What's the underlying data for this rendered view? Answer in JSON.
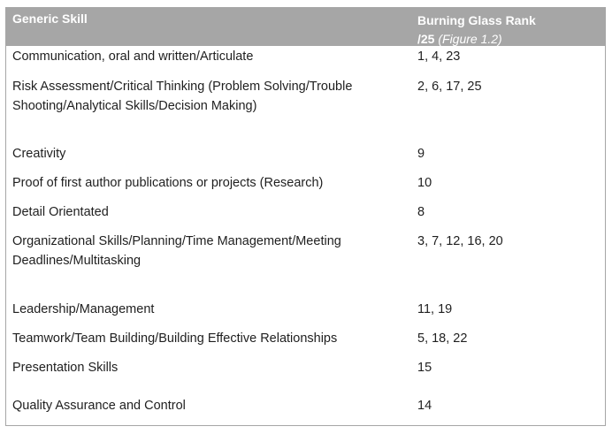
{
  "table": {
    "headers": {
      "col1": "Generic Skill",
      "col2_line1": "Burning Glass Rank",
      "col2_line2": "/25",
      "col2_figure": "(Figure 1.2)"
    },
    "rows": [
      {
        "skill": "Communication, oral and written/Articulate",
        "rank": "1, 4, 23"
      },
      {
        "skill": "Risk Assessment/Critical Thinking (Problem Solving/Trouble Shooting/Analytical Skills/Decision Making)",
        "rank": "2, 6, 17, 25"
      },
      {
        "skill": "Creativity",
        "rank": "9"
      },
      {
        "skill": "Proof of first author publications or projects (Research)",
        "rank": "10"
      },
      {
        "skill": "Detail Orientated",
        "rank": "8"
      },
      {
        "skill": "Organizational Skills/Planning/Time Management/Meeting Deadlines/Multitasking",
        "rank": "3, 7, 12, 16, 20"
      },
      {
        "skill": "Leadership/Management",
        "rank": "11, 19"
      },
      {
        "skill": "Teamwork/Team Building/Building Effective Relationships",
        "rank": "5, 18, 22"
      },
      {
        "skill": "Presentation Skills",
        "rank": "15"
      },
      {
        "skill": "Quality Assurance and Control",
        "rank": "14"
      }
    ]
  }
}
